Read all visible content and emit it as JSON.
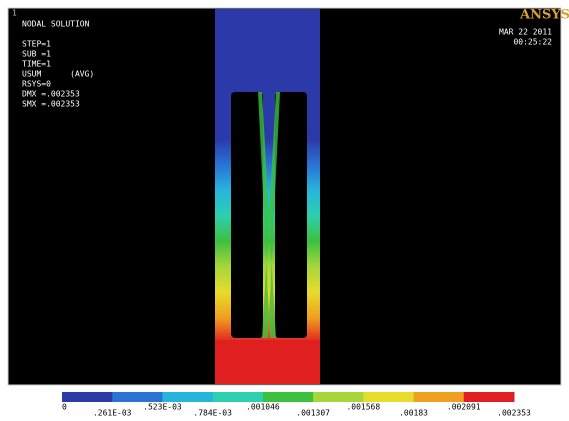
{
  "window": {
    "number": "1"
  },
  "info": {
    "title": "NODAL SOLUTION",
    "lines": [
      "STEP=1",
      "SUB =1",
      "TIME=1",
      "USUM      (AVG)",
      "RSYS=0",
      "DMX =.002353",
      "SMX =.002353"
    ]
  },
  "brand": {
    "logo": "ANSYS",
    "date": "MAR 22 2011",
    "time": "00:25:22"
  },
  "legend": {
    "colors": [
      "#2b3aa8",
      "#2a72d4",
      "#27b4dc",
      "#2ccfb0",
      "#3cc040",
      "#a6d63a",
      "#e6dc2c",
      "#f0a020",
      "#e02020"
    ],
    "labels": [
      "0",
      ".261E-03",
      ".523E-03",
      ".784E-03",
      ".001046",
      ".001307",
      ".001568",
      ".00183",
      ".002091",
      ".002353"
    ]
  }
}
